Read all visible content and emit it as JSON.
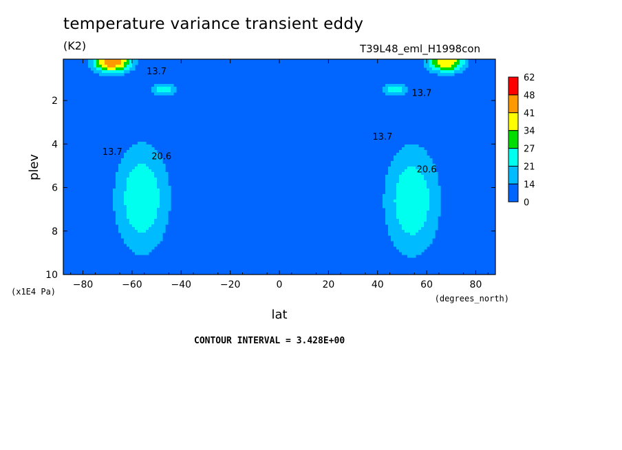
{
  "header": {
    "title": "temperature variance transient eddy",
    "units": "(K2)",
    "run_id": "T39L48_eml_H1998con",
    "contour_interval": "CONTOUR INTERVAL = 3.428E+00"
  },
  "chart_data": {
    "type": "heatmap",
    "subtype": "filled-contour",
    "xlabel": "lat",
    "xunits": "(degrees_north)",
    "ylabel": "plev",
    "yunits": "(x1E4 Pa)",
    "xlim": [
      -88,
      88
    ],
    "ylim": [
      10,
      0.1
    ],
    "y_inverted": true,
    "xticks": [
      -80,
      -60,
      -40,
      -20,
      0,
      20,
      40,
      60,
      80
    ],
    "xtick_labels": [
      "−80",
      "−60",
      "−40",
      "−20",
      "0",
      "20",
      "40",
      "60",
      "80"
    ],
    "yticks": [
      2,
      4,
      6,
      8,
      10
    ],
    "ytick_labels": [
      "2",
      "4",
      "6",
      "8",
      "10"
    ],
    "contour_labels": [
      {
        "text": "13.7",
        "lat": -50,
        "plev": 0.8
      },
      {
        "text": "13.7",
        "lat": -68,
        "plev": 4.5
      },
      {
        "text": "20.6",
        "lat": -48,
        "plev": 4.7
      },
      {
        "text": "13.7",
        "lat": 42,
        "plev": 3.8
      },
      {
        "text": "20.6",
        "lat": 60,
        "plev": 5.3
      },
      {
        "text": "13.7",
        "lat": 58,
        "plev": 1.8
      }
    ],
    "colorbar": {
      "levels": [
        "62",
        "48",
        "41",
        "34",
        "27",
        "21",
        "14",
        "0"
      ],
      "colors": [
        "#ff0000",
        "#ff9900",
        "#ffff00",
        "#00dd00",
        "#00ffee",
        "#00bbff",
        "#0066ff"
      ]
    },
    "field": {
      "background": "#0066ff",
      "band_colors": [
        "#0066ff",
        "#00bbff",
        "#00ffee",
        "#00dd00",
        "#ffff00",
        "#ff9900",
        "#ff0000"
      ],
      "features": [
        {
          "name": "sh-midlat-max",
          "lat": -56,
          "plev": 6.5,
          "max_value": 26
        },
        {
          "name": "nh-midlat-max",
          "lat": 54,
          "plev": 6.6,
          "max_value": 26
        },
        {
          "name": "sh-upper-max",
          "lat": -68,
          "plev": 0.2,
          "max_value": 48
        },
        {
          "name": "nh-upper-max",
          "lat": 68,
          "plev": 0.2,
          "max_value": 41
        },
        {
          "name": "sh-upper-secondary",
          "lat": -47,
          "plev": 1.5,
          "max_value": 24
        },
        {
          "name": "nh-upper-secondary",
          "lat": 47,
          "plev": 1.5,
          "max_value": 24
        }
      ]
    }
  }
}
